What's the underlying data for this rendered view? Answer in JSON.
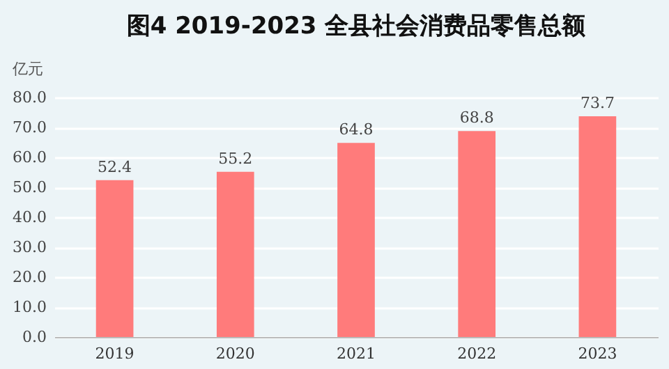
{
  "chart_data": {
    "type": "bar",
    "title": "图4 2019-2023 全县社会消费品零售总额",
    "ylabel": "亿元",
    "categories": [
      "2019",
      "2020",
      "2021",
      "2022",
      "2023"
    ],
    "values": [
      52.4,
      55.2,
      64.8,
      68.8,
      73.7
    ],
    "color": "#ff7b7b",
    "ylim": [
      0,
      80
    ],
    "yticks": [
      {
        "value": 0,
        "label": "0.0"
      },
      {
        "value": 10,
        "label": "10.0"
      },
      {
        "value": 20,
        "label": "20.0"
      },
      {
        "value": 30,
        "label": "30.0"
      },
      {
        "value": 40,
        "label": "40.0"
      },
      {
        "value": 50,
        "label": "50.0"
      },
      {
        "value": 60,
        "label": "60.0"
      },
      {
        "value": 70,
        "label": "70.0"
      },
      {
        "value": 80,
        "label": "80.0"
      }
    ],
    "grid": "y",
    "data_labels": true
  }
}
